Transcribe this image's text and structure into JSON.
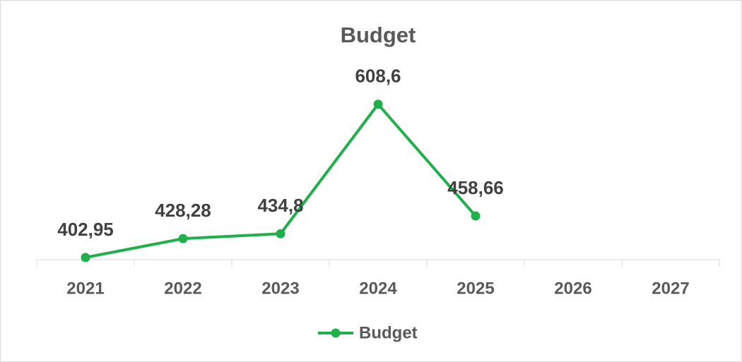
{
  "chart_data": {
    "type": "line",
    "title": "Budget",
    "categories": [
      "2021",
      "2022",
      "2023",
      "2024",
      "2025",
      "2026",
      "2027"
    ],
    "series": [
      {
        "name": "Budget",
        "color": "#1fb04c",
        "values": [
          402.95,
          428.28,
          434.8,
          608.6,
          458.66,
          null,
          null
        ],
        "value_labels": [
          "402,95",
          "428,28",
          "434,8",
          "608,6",
          "458,66",
          null,
          null
        ]
      }
    ],
    "ylim": [
      400,
      650
    ],
    "legend": "bottom"
  }
}
